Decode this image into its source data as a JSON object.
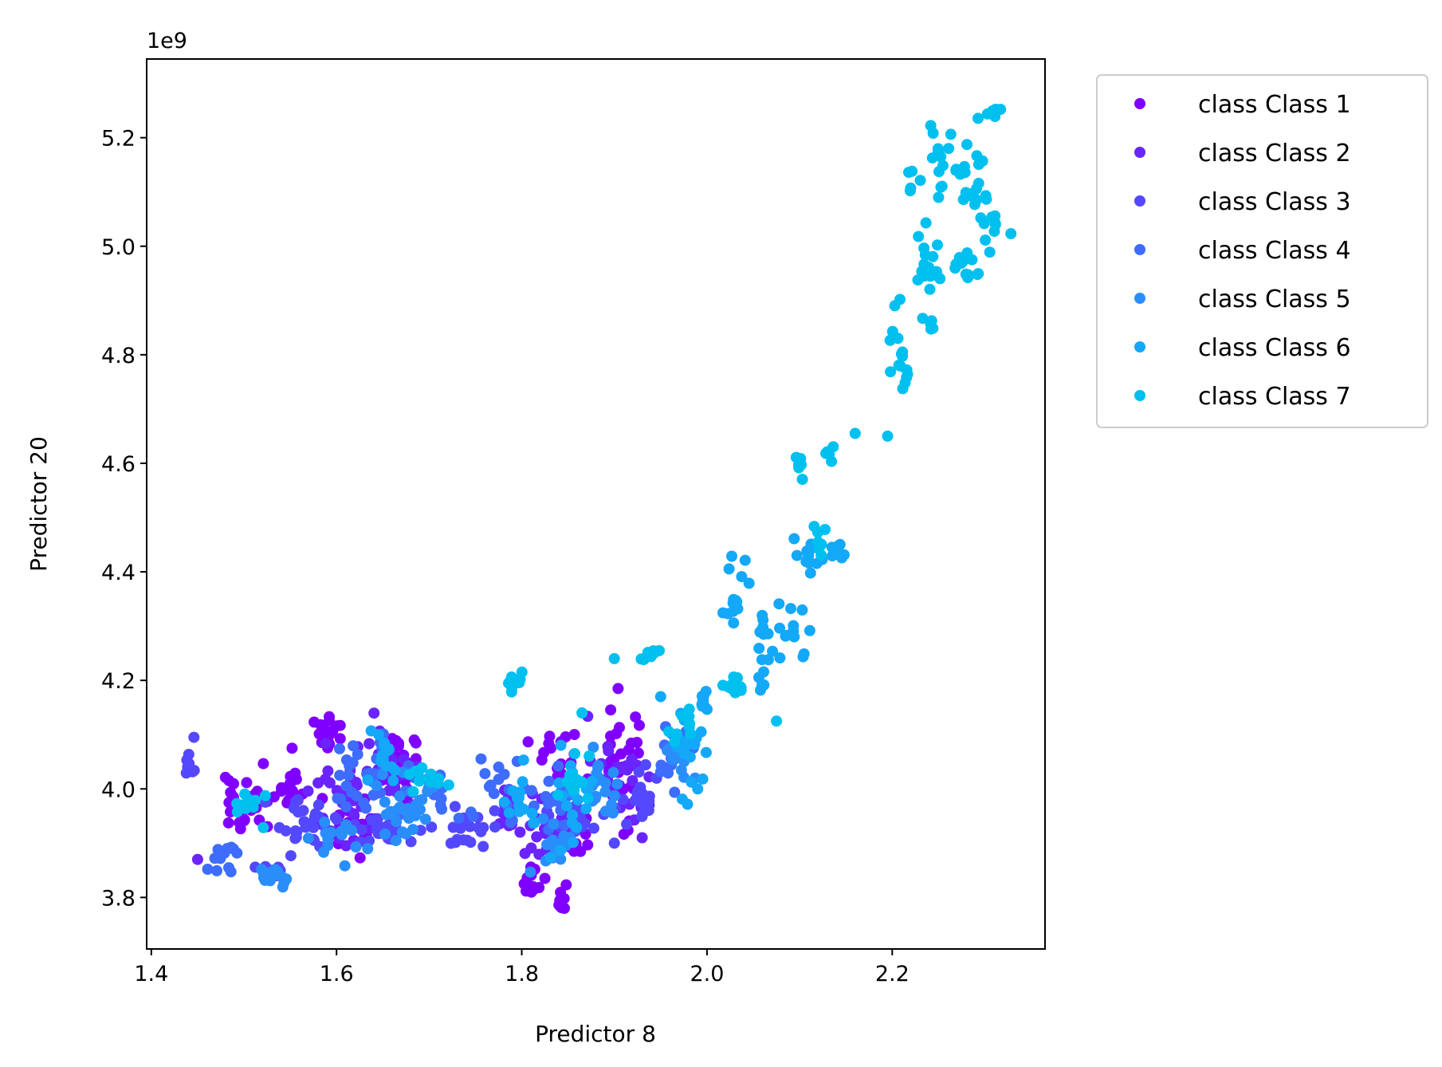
{
  "chart_data": {
    "type": "scatter",
    "title": "",
    "xlabel": "Predictor 8",
    "ylabel": "Predictor 20",
    "y_offset_label": "1e9",
    "xlim": [
      1.395,
      2.365
    ],
    "ylim": [
      3.705,
      5.345
    ],
    "x_ticks": [
      1.4,
      1.6,
      1.8,
      2.0,
      2.2
    ],
    "x_tick_labels": [
      "1.4",
      "1.6",
      "1.8",
      "2.0",
      "2.2"
    ],
    "y_ticks": [
      3.8,
      4.0,
      4.2,
      4.4,
      4.6,
      4.8,
      5.0,
      5.2
    ],
    "y_tick_labels": [
      "3.8",
      "4.0",
      "4.2",
      "4.4",
      "4.6",
      "4.8",
      "5.0",
      "5.2"
    ],
    "grid": false,
    "legend_position": "outside-top-right",
    "series": [
      {
        "name": "class Class 1",
        "color": "#8000ff",
        "clusters": [
          [
            1.5,
            3.97,
            0.015,
            0.035,
            30
          ],
          [
            1.55,
            4.0,
            0.01,
            0.02,
            16
          ],
          [
            1.59,
            4.1,
            0.01,
            0.02,
            18
          ],
          [
            1.62,
            3.95,
            0.015,
            0.04,
            25
          ],
          [
            1.67,
            4.05,
            0.015,
            0.03,
            22
          ],
          [
            1.81,
            3.83,
            0.008,
            0.015,
            16
          ],
          [
            1.84,
            3.8,
            0.003,
            0.02,
            8
          ],
          [
            1.84,
            4.05,
            0.015,
            0.03,
            20
          ],
          [
            1.91,
            4.05,
            0.015,
            0.06,
            26
          ],
          [
            1.86,
            3.91,
            0.01,
            0.02,
            10
          ]
        ],
        "points": [
          [
            1.552,
            4.075
          ],
          [
            1.904,
            4.185
          ],
          [
            1.846,
            3.78
          ]
        ]
      },
      {
        "name": "class Class 2",
        "color": "#6a24fe",
        "clusters": [
          [
            1.6,
            3.98,
            0.02,
            0.05,
            30
          ],
          [
            1.66,
            4.04,
            0.02,
            0.04,
            25
          ],
          [
            1.82,
            3.92,
            0.015,
            0.03,
            22
          ],
          [
            1.91,
            4.03,
            0.02,
            0.06,
            24
          ],
          [
            1.78,
            3.95,
            0.01,
            0.02,
            10
          ]
        ],
        "points": [
          [
            1.45,
            3.87
          ],
          [
            1.93,
            3.91
          ]
        ]
      },
      {
        "name": "class Class 3",
        "color": "#5448fe",
        "clusters": [
          [
            1.44,
            4.04,
            0.005,
            0.01,
            10
          ],
          [
            1.57,
            3.93,
            0.02,
            0.03,
            28
          ],
          [
            1.65,
            3.92,
            0.02,
            0.02,
            25
          ],
          [
            1.74,
            3.93,
            0.02,
            0.02,
            20
          ],
          [
            1.86,
            3.94,
            0.02,
            0.02,
            20
          ],
          [
            1.93,
            3.98,
            0.015,
            0.03,
            18
          ],
          [
            1.53,
            3.85,
            0.01,
            0.01,
            12
          ]
        ],
        "points": [
          [
            1.446,
            4.095
          ],
          [
            1.9,
            3.9
          ]
        ]
      },
      {
        "name": "class Class 4",
        "color": "#3e6cfc",
        "clusters": [
          [
            1.48,
            3.88,
            0.01,
            0.015,
            12
          ],
          [
            1.63,
            4.02,
            0.02,
            0.04,
            30
          ],
          [
            1.7,
            4.0,
            0.015,
            0.03,
            16
          ],
          [
            1.78,
            4.0,
            0.02,
            0.04,
            18
          ],
          [
            1.84,
            3.99,
            0.015,
            0.04,
            18
          ],
          [
            1.96,
            4.07,
            0.012,
            0.035,
            18
          ]
        ],
        "points": []
      },
      {
        "name": "class Class 5",
        "color": "#2a8efa",
        "clusters": [
          [
            1.53,
            3.84,
            0.01,
            0.012,
            16
          ],
          [
            1.67,
            3.96,
            0.02,
            0.04,
            30
          ],
          [
            1.6,
            3.91,
            0.015,
            0.02,
            15
          ],
          [
            1.84,
            3.9,
            0.015,
            0.03,
            16
          ],
          [
            1.88,
            4.0,
            0.015,
            0.04,
            20
          ],
          [
            1.97,
            4.05,
            0.012,
            0.03,
            14
          ]
        ],
        "points": []
      },
      {
        "name": "class Class 6",
        "color": "#14a8f8",
        "clusters": [
          [
            1.65,
            4.06,
            0.01,
            0.02,
            15
          ],
          [
            1.8,
            3.99,
            0.01,
            0.03,
            14
          ],
          [
            1.86,
            3.98,
            0.015,
            0.05,
            18
          ],
          [
            1.98,
            4.05,
            0.01,
            0.06,
            16
          ],
          [
            2.0,
            4.15,
            0.005,
            0.03,
            10
          ],
          [
            2.03,
            4.36,
            0.008,
            0.03,
            14
          ],
          [
            2.06,
            4.25,
            0.008,
            0.05,
            16
          ],
          [
            2.09,
            4.27,
            0.008,
            0.05,
            12
          ],
          [
            2.11,
            4.43,
            0.01,
            0.02,
            12
          ],
          [
            2.14,
            4.43,
            0.005,
            0.015,
            8
          ]
        ],
        "points": [
          [
            1.99,
            4.0
          ],
          [
            1.95,
            4.17
          ]
        ]
      },
      {
        "name": "class Class 7",
        "color": "#00c0f0",
        "clusters": [
          [
            1.5,
            3.97,
            0.01,
            0.02,
            10
          ],
          [
            1.7,
            4.02,
            0.015,
            0.015,
            12
          ],
          [
            1.79,
            4.19,
            0.005,
            0.02,
            10
          ],
          [
            1.86,
            4.02,
            0.01,
            0.04,
            14
          ],
          [
            1.94,
            4.25,
            0.005,
            0.01,
            8
          ],
          [
            1.97,
            4.11,
            0.008,
            0.02,
            10
          ],
          [
            2.03,
            4.19,
            0.01,
            0.01,
            12
          ],
          [
            2.1,
            4.6,
            0.003,
            0.015,
            8
          ],
          [
            2.12,
            4.47,
            0.004,
            0.02,
            8
          ],
          [
            2.13,
            4.62,
            0.004,
            0.01,
            6
          ],
          [
            2.21,
            4.79,
            0.008,
            0.04,
            16
          ],
          [
            2.24,
            4.97,
            0.01,
            0.04,
            18
          ],
          [
            2.25,
            5.17,
            0.01,
            0.05,
            16
          ],
          [
            2.28,
            4.96,
            0.01,
            0.03,
            14
          ],
          [
            2.29,
            5.12,
            0.01,
            0.05,
            16
          ],
          [
            2.3,
            5.06,
            0.01,
            0.03,
            12
          ],
          [
            2.31,
            5.25,
            0.008,
            0.01,
            6
          ],
          [
            2.22,
            5.1,
            0.003,
            0.015,
            4
          ],
          [
            2.24,
            4.84,
            0.005,
            0.02,
            5
          ]
        ],
        "points": [
          [
            2.16,
            4.655
          ],
          [
            2.195,
            4.65
          ],
          [
            1.9,
            4.24
          ],
          [
            1.865,
            4.14
          ],
          [
            2.075,
            4.125
          ],
          [
            2.25,
            5.09
          ]
        ]
      }
    ]
  }
}
